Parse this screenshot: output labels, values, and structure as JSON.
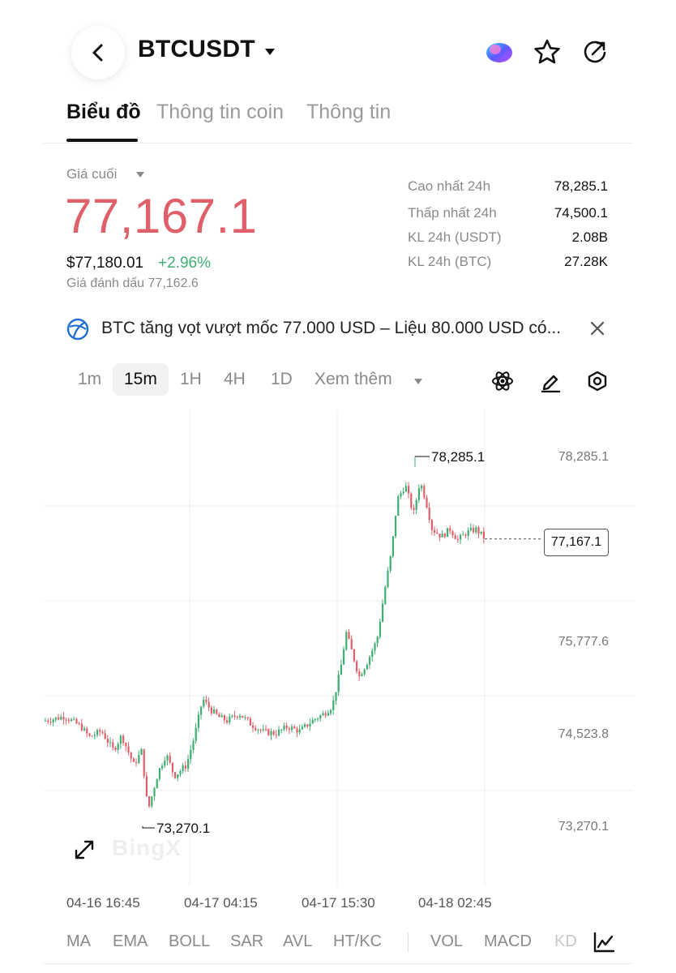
{
  "header": {
    "symbol": "BTCUSDT"
  },
  "tabs": [
    {
      "label": "Biểu đồ",
      "active": true
    },
    {
      "label": "Thông tin coin",
      "active": false
    },
    {
      "label": "Thông tin",
      "active": false
    }
  ],
  "ticker": {
    "last_label": "Giá cuối",
    "last_price": "77,167.1",
    "usd_price": "$77,180.01",
    "change": "+2.96%",
    "mark_price": "Giá đánh dấu 77,162.6",
    "stats": [
      {
        "label": "Cao nhất 24h",
        "value": "78,285.1"
      },
      {
        "label": "Thấp nhất 24h",
        "value": "74,500.1"
      },
      {
        "label": "KL 24h (USDT)",
        "value": "2.08B"
      },
      {
        "label": "KL 24h (BTC)",
        "value": "27.28K"
      }
    ]
  },
  "news": {
    "text": "BTC tăng vọt vượt mốc 77.000 USD – Liệu 80.000 USD có..."
  },
  "intervals": {
    "items": [
      "1m",
      "15m",
      "1H",
      "4H",
      "1D"
    ],
    "active": "15m",
    "more": "Xem thêm"
  },
  "chart": {
    "y_ticks": [
      "78,285.1",
      "75,777.6",
      "74,523.8",
      "73,270.1"
    ],
    "high_label": "78,285.1",
    "low_label": "73,270.1",
    "current_price": "77,167.1",
    "watermark": "BingX",
    "time_labels": [
      "04-16 16:45",
      "04-17 04:15",
      "04-17 15:30",
      "04-18 02:45"
    ],
    "up_color": "#3fae72",
    "down_color": "#e0606a"
  },
  "indicators": {
    "main": [
      "MA",
      "EMA",
      "BOLL",
      "SAR",
      "AVL",
      "HT/KC"
    ],
    "sub": [
      "VOL",
      "MACD",
      "KD"
    ]
  }
}
